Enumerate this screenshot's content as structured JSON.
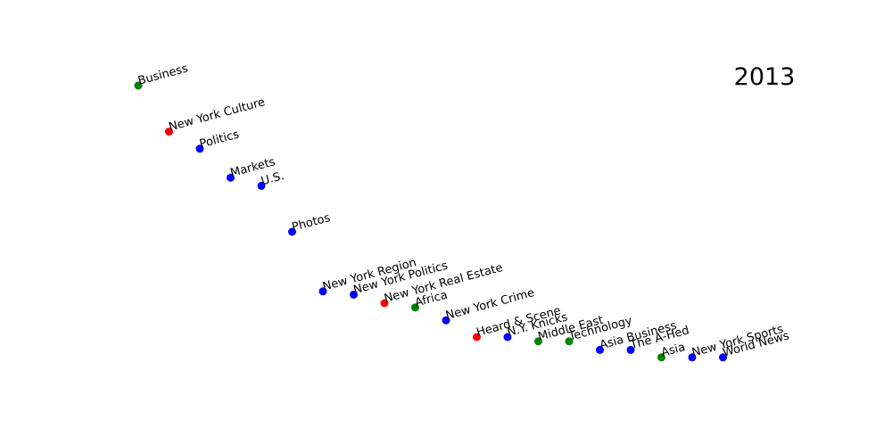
{
  "chart_data": {
    "type": "scatter",
    "year": "2013",
    "grid": false,
    "axes_visible": false,
    "xlim": [
      0,
      1
    ],
    "ylim": [
      0,
      1
    ],
    "color_map": {
      "green": "#008000",
      "red": "#ff0000",
      "blue": "#0000ff"
    },
    "points": [
      {
        "label": "Business",
        "x": 0.04,
        "y": 0.81,
        "color": "green"
      },
      {
        "label": "New York Culture",
        "x": 0.086,
        "y": 0.681,
        "color": "red"
      },
      {
        "label": "Politics",
        "x": 0.132,
        "y": 0.633,
        "color": "blue"
      },
      {
        "label": "Markets",
        "x": 0.178,
        "y": 0.552,
        "color": "blue"
      },
      {
        "label": "U.S.",
        "x": 0.224,
        "y": 0.529,
        "color": "blue"
      },
      {
        "label": "Photos",
        "x": 0.27,
        "y": 0.4,
        "color": "blue"
      },
      {
        "label": "New York Region",
        "x": 0.316,
        "y": 0.233,
        "color": "blue"
      },
      {
        "label": "New York Politics",
        "x": 0.362,
        "y": 0.224,
        "color": "blue"
      },
      {
        "label": "New York Real Estate",
        "x": 0.408,
        "y": 0.2,
        "color": "red"
      },
      {
        "label": "Africa",
        "x": 0.454,
        "y": 0.188,
        "color": "green"
      },
      {
        "label": "New York Crime",
        "x": 0.5,
        "y": 0.152,
        "color": "blue"
      },
      {
        "label": "Heard & Scene",
        "x": 0.546,
        "y": 0.105,
        "color": "red"
      },
      {
        "label": "N.Y. Knicks",
        "x": 0.592,
        "y": 0.105,
        "color": "blue"
      },
      {
        "label": "Middle East",
        "x": 0.638,
        "y": 0.093,
        "color": "green"
      },
      {
        "label": "Technology",
        "x": 0.684,
        "y": 0.093,
        "color": "green"
      },
      {
        "label": "Asia Business",
        "x": 0.73,
        "y": 0.069,
        "color": "blue"
      },
      {
        "label": "The A-Hed",
        "x": 0.776,
        "y": 0.069,
        "color": "blue"
      },
      {
        "label": "Asia",
        "x": 0.822,
        "y": 0.048,
        "color": "green"
      },
      {
        "label": "New York Sports",
        "x": 0.868,
        "y": 0.048,
        "color": "blue"
      },
      {
        "label": "World News",
        "x": 0.914,
        "y": 0.048,
        "color": "blue"
      }
    ]
  }
}
